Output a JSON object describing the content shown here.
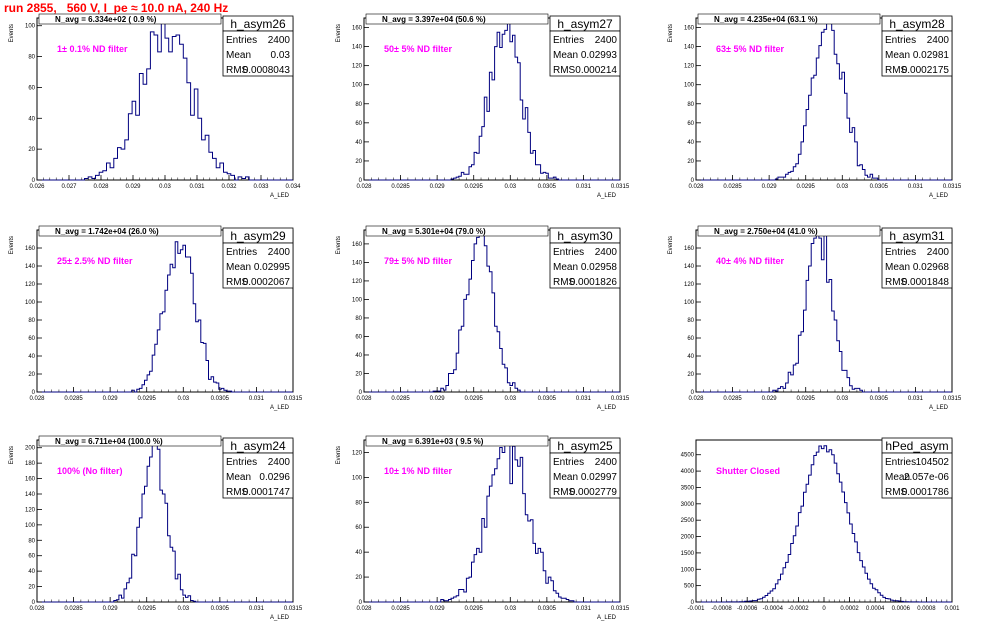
{
  "header": {
    "run_title": "run 2855,   560 V, I_pe ≈ 10.0 nA, 240 Hz"
  },
  "colors": {
    "hist_line": "#000080",
    "annotation": "#ff00ff",
    "title": "#ff0000"
  },
  "stat_labels": {
    "entries": "Entries",
    "mean": "Mean",
    "rms": "RMS"
  },
  "chart_data": [
    {
      "type": "bar",
      "name": "h_asym26",
      "entries": "2400",
      "mean": "0.03",
      "rms": "0.0008043",
      "n_avg": "N_avg = 6.334e+02 ( 0.9 %)",
      "annotation": "1± 0.1% ND filter",
      "ylabel": "Events",
      "xlabel": "A_LED",
      "xlim": [
        0.026,
        0.034
      ],
      "ylim": [
        0,
        105
      ],
      "xticks": [
        0.026,
        0.027,
        0.028,
        0.029,
        0.03,
        0.031,
        0.032,
        0.033,
        0.034
      ],
      "xtick_labels": [
        "0.026",
        "0.027",
        "0.028",
        "0.029",
        "0.03",
        "0.031",
        "0.032",
        "0.033",
        "0.034"
      ],
      "yticks": [
        0,
        20,
        40,
        60,
        80,
        100
      ],
      "mu": 0.03,
      "sigma": 0.0008,
      "peak": 100,
      "bins": 70,
      "seed": 3
    },
    {
      "type": "bar",
      "name": "h_asym27",
      "entries": "2400",
      "mean": "0.02993",
      "rms": "0.000214",
      "n_avg": "N_avg = 3.397e+04 (50.6 %)",
      "annotation": "50± 5% ND filter",
      "ylabel": "Events",
      "xlabel": "A_LED",
      "xlim": [
        0.028,
        0.0315
      ],
      "ylim": [
        0,
        170
      ],
      "xticks": [
        0.028,
        0.0285,
        0.029,
        0.0295,
        0.03,
        0.0305,
        0.031,
        0.0315
      ],
      "xtick_labels": [
        "0.028",
        "0.0285",
        "0.029",
        "0.0295",
        "0.03",
        "0.0305",
        "0.031",
        "0.0315"
      ],
      "yticks": [
        0,
        20,
        40,
        60,
        80,
        100,
        120,
        140,
        160
      ],
      "mu": 0.02993,
      "sigma": 0.000214,
      "peak": 160,
      "bins": 100,
      "seed": 7
    },
    {
      "type": "bar",
      "name": "h_asym28",
      "entries": "2400",
      "mean": "0.02981",
      "rms": "0.0002175",
      "n_avg": "N_avg = 4.235e+04 (63.1 %)",
      "annotation": "63± 5% ND filter",
      "ylabel": "Events",
      "xlabel": "A_LED",
      "xlim": [
        0.028,
        0.0315
      ],
      "ylim": [
        0,
        170
      ],
      "xticks": [
        0.028,
        0.0285,
        0.029,
        0.0295,
        0.03,
        0.0305,
        0.031,
        0.0315
      ],
      "xtick_labels": [
        "0.028",
        "0.0285",
        "0.029",
        "0.0295",
        "0.03",
        "0.0305",
        "0.031",
        "0.0315"
      ],
      "yticks": [
        0,
        20,
        40,
        60,
        80,
        100,
        120,
        140,
        160
      ],
      "mu": 0.02981,
      "sigma": 0.0002175,
      "peak": 158,
      "bins": 100,
      "seed": 11
    },
    {
      "type": "bar",
      "name": "h_asym29",
      "entries": "2400",
      "mean": "0.02995",
      "rms": "0.0002067",
      "n_avg": "N_avg = 1.742e+04 (26.0 %)",
      "annotation": "25± 2.5% ND filter",
      "ylabel": "Events",
      "xlabel": "A_LED",
      "xlim": [
        0.028,
        0.0315
      ],
      "ylim": [
        0,
        180
      ],
      "xticks": [
        0.028,
        0.0285,
        0.029,
        0.0295,
        0.03,
        0.0305,
        0.031,
        0.0315
      ],
      "xtick_labels": [
        "0.028",
        "0.0285",
        "0.029",
        "0.0295",
        "0.03",
        "0.0305",
        "0.031",
        "0.0315"
      ],
      "yticks": [
        0,
        20,
        40,
        60,
        80,
        100,
        120,
        140,
        160
      ],
      "mu": 0.02995,
      "sigma": 0.0002067,
      "peak": 165,
      "bins": 100,
      "seed": 13
    },
    {
      "type": "bar",
      "name": "h_asym30",
      "entries": "2400",
      "mean": "0.02958",
      "rms": "0.0001826",
      "n_avg": "N_avg = 5.301e+04 (79.0 %)",
      "annotation": "79± 5% ND filter",
      "ylabel": "Events",
      "xlabel": "A_LED",
      "xlim": [
        0.028,
        0.0315
      ],
      "ylim": [
        0,
        175
      ],
      "xticks": [
        0.028,
        0.0285,
        0.029,
        0.0295,
        0.03,
        0.0305,
        0.031,
        0.0315
      ],
      "xtick_labels": [
        "0.028",
        "0.0285",
        "0.029",
        "0.0295",
        "0.03",
        "0.0305",
        "0.031",
        "0.0315"
      ],
      "yticks": [
        0,
        20,
        40,
        60,
        80,
        100,
        120,
        140,
        160
      ],
      "mu": 0.02958,
      "sigma": 0.0001826,
      "peak": 172,
      "bins": 100,
      "seed": 17
    },
    {
      "type": "bar",
      "name": "h_asym31",
      "entries": "2400",
      "mean": "0.02968",
      "rms": "0.0001848",
      "n_avg": "N_avg = 2.750e+04 (41.0 %)",
      "annotation": "40± 4% ND filter",
      "ylabel": "Events",
      "xlabel": "A_LED",
      "xlim": [
        0.028,
        0.0315
      ],
      "ylim": [
        0,
        180
      ],
      "xticks": [
        0.028,
        0.0285,
        0.029,
        0.0295,
        0.03,
        0.0305,
        0.031,
        0.0315
      ],
      "xtick_labels": [
        "0.028",
        "0.0285",
        "0.029",
        "0.0295",
        "0.03",
        "0.0305",
        "0.031",
        "0.0315"
      ],
      "yticks": [
        0,
        20,
        40,
        60,
        80,
        100,
        120,
        140,
        160
      ],
      "mu": 0.02968,
      "sigma": 0.0001848,
      "peak": 170,
      "bins": 100,
      "seed": 19
    },
    {
      "type": "bar",
      "name": "h_asym24",
      "entries": "2400",
      "mean": "0.0296",
      "rms": "0.0001747",
      "n_avg": "N_avg = 6.711e+04 (100.0 %)",
      "annotation": "100% (No filter)",
      "ylabel": "Events",
      "xlabel": "A_LED",
      "xlim": [
        0.028,
        0.0315
      ],
      "ylim": [
        0,
        210
      ],
      "xticks": [
        0.028,
        0.0285,
        0.029,
        0.0295,
        0.03,
        0.0305,
        0.031,
        0.0315
      ],
      "xtick_labels": [
        "0.028",
        "0.0285",
        "0.029",
        "0.0295",
        "0.03",
        "0.0305",
        "0.031",
        "0.0315"
      ],
      "yticks": [
        0,
        20,
        40,
        60,
        80,
        100,
        120,
        140,
        160,
        180,
        200
      ],
      "mu": 0.0296,
      "sigma": 0.0001747,
      "peak": 200,
      "bins": 100,
      "seed": 23
    },
    {
      "type": "bar",
      "name": "h_asym25",
      "entries": "2400",
      "mean": "0.02997",
      "rms": "0.0002779",
      "n_avg": "N_avg = 6.391e+03 ( 9.5 %)",
      "annotation": "10± 1% ND filter",
      "ylabel": "Events",
      "xlabel": "A_LED",
      "xlim": [
        0.028,
        0.0315
      ],
      "ylim": [
        0,
        130
      ],
      "xticks": [
        0.028,
        0.0285,
        0.029,
        0.0295,
        0.03,
        0.0305,
        0.031,
        0.0315
      ],
      "xtick_labels": [
        "0.028",
        "0.0285",
        "0.029",
        "0.0295",
        "0.03",
        "0.0305",
        "0.031",
        "0.0315"
      ],
      "yticks": [
        0,
        20,
        40,
        60,
        80,
        100,
        120
      ],
      "mu": 0.02997,
      "sigma": 0.0002779,
      "peak": 122,
      "bins": 100,
      "seed": 29
    },
    {
      "type": "bar",
      "name": "hPed_asym",
      "entries": "104502",
      "mean": "2.057e-06",
      "rms": "0.0001786",
      "n_avg": "",
      "annotation": "Shutter Closed",
      "ylabel": "",
      "xlabel": "",
      "xlim": [
        -0.001,
        0.001
      ],
      "ylim": [
        0,
        4950
      ],
      "xticks": [
        -0.001,
        -0.0008,
        -0.0006,
        -0.0004,
        -0.0002,
        0,
        0.0002,
        0.0004,
        0.0006,
        0.0008,
        0.001
      ],
      "xtick_labels": [
        "-0.001",
        "-0.0008",
        "-0.0006",
        "-0.0004",
        "-0.0002",
        "0",
        "0.0002",
        "0.0004",
        "0.0006",
        "0.0008",
        "0.001"
      ],
      "yticks": [
        0,
        500,
        1000,
        1500,
        2000,
        2500,
        3000,
        3500,
        4000,
        4500
      ],
      "mu": 2e-06,
      "sigma": 0.0001786,
      "peak": 4750,
      "bins": 100,
      "seed": 31
    }
  ]
}
